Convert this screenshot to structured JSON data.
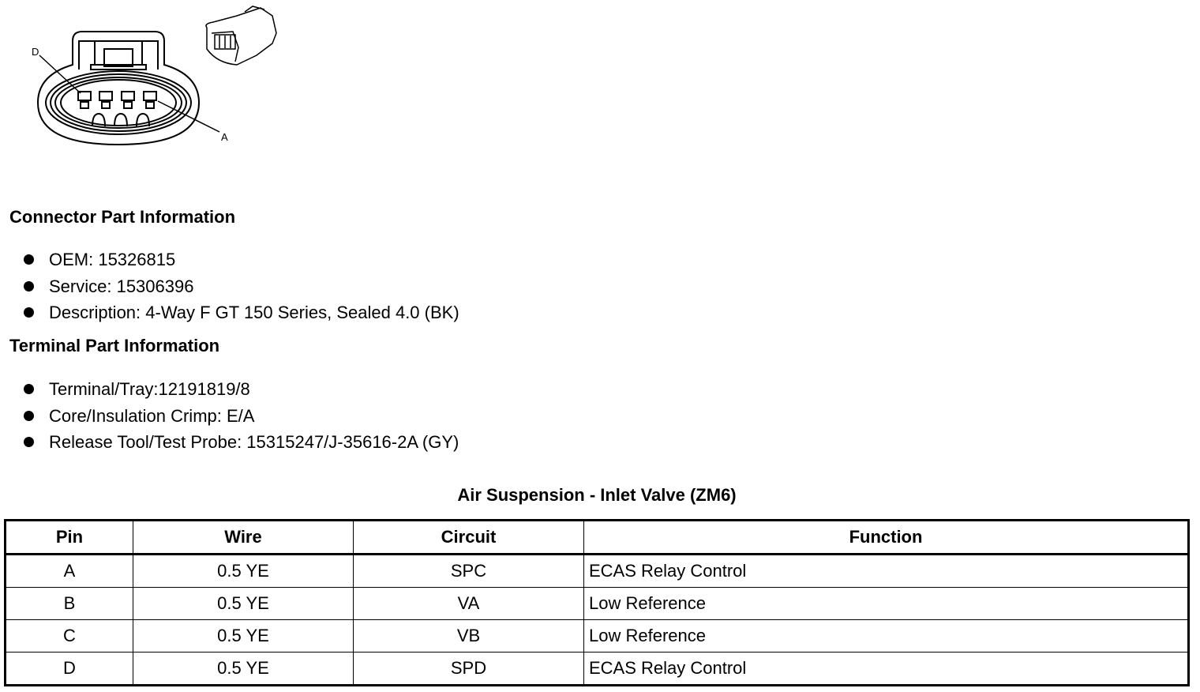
{
  "diagram": {
    "labels": {
      "pin_d": "D",
      "pin_a": "A"
    }
  },
  "connector_info": {
    "heading": "Connector Part Information",
    "items": [
      "OEM: 15326815",
      "Service: 15306396",
      "Description: 4-Way F GT 150 Series, Sealed 4.0 (BK)"
    ]
  },
  "terminal_info": {
    "heading": "Terminal Part Information",
    "items": [
      "Terminal/Tray:12191819/8",
      "Core/Insulation Crimp: E/A",
      "Release Tool/Test Probe: 15315247/J-35616-2A (GY)"
    ]
  },
  "table": {
    "title": "Air Suspension - Inlet Valve (ZM6)",
    "headers": [
      "Pin",
      "Wire",
      "Circuit",
      "Function"
    ],
    "rows": [
      [
        "A",
        "0.5 YE",
        "SPC",
        "ECAS Relay Control"
      ],
      [
        "B",
        "0.5 YE",
        "VA",
        "Low Reference"
      ],
      [
        "C",
        "0.5 YE",
        "VB",
        "Low Reference"
      ],
      [
        "D",
        "0.5 YE",
        "SPD",
        "ECAS Relay Control"
      ]
    ]
  }
}
